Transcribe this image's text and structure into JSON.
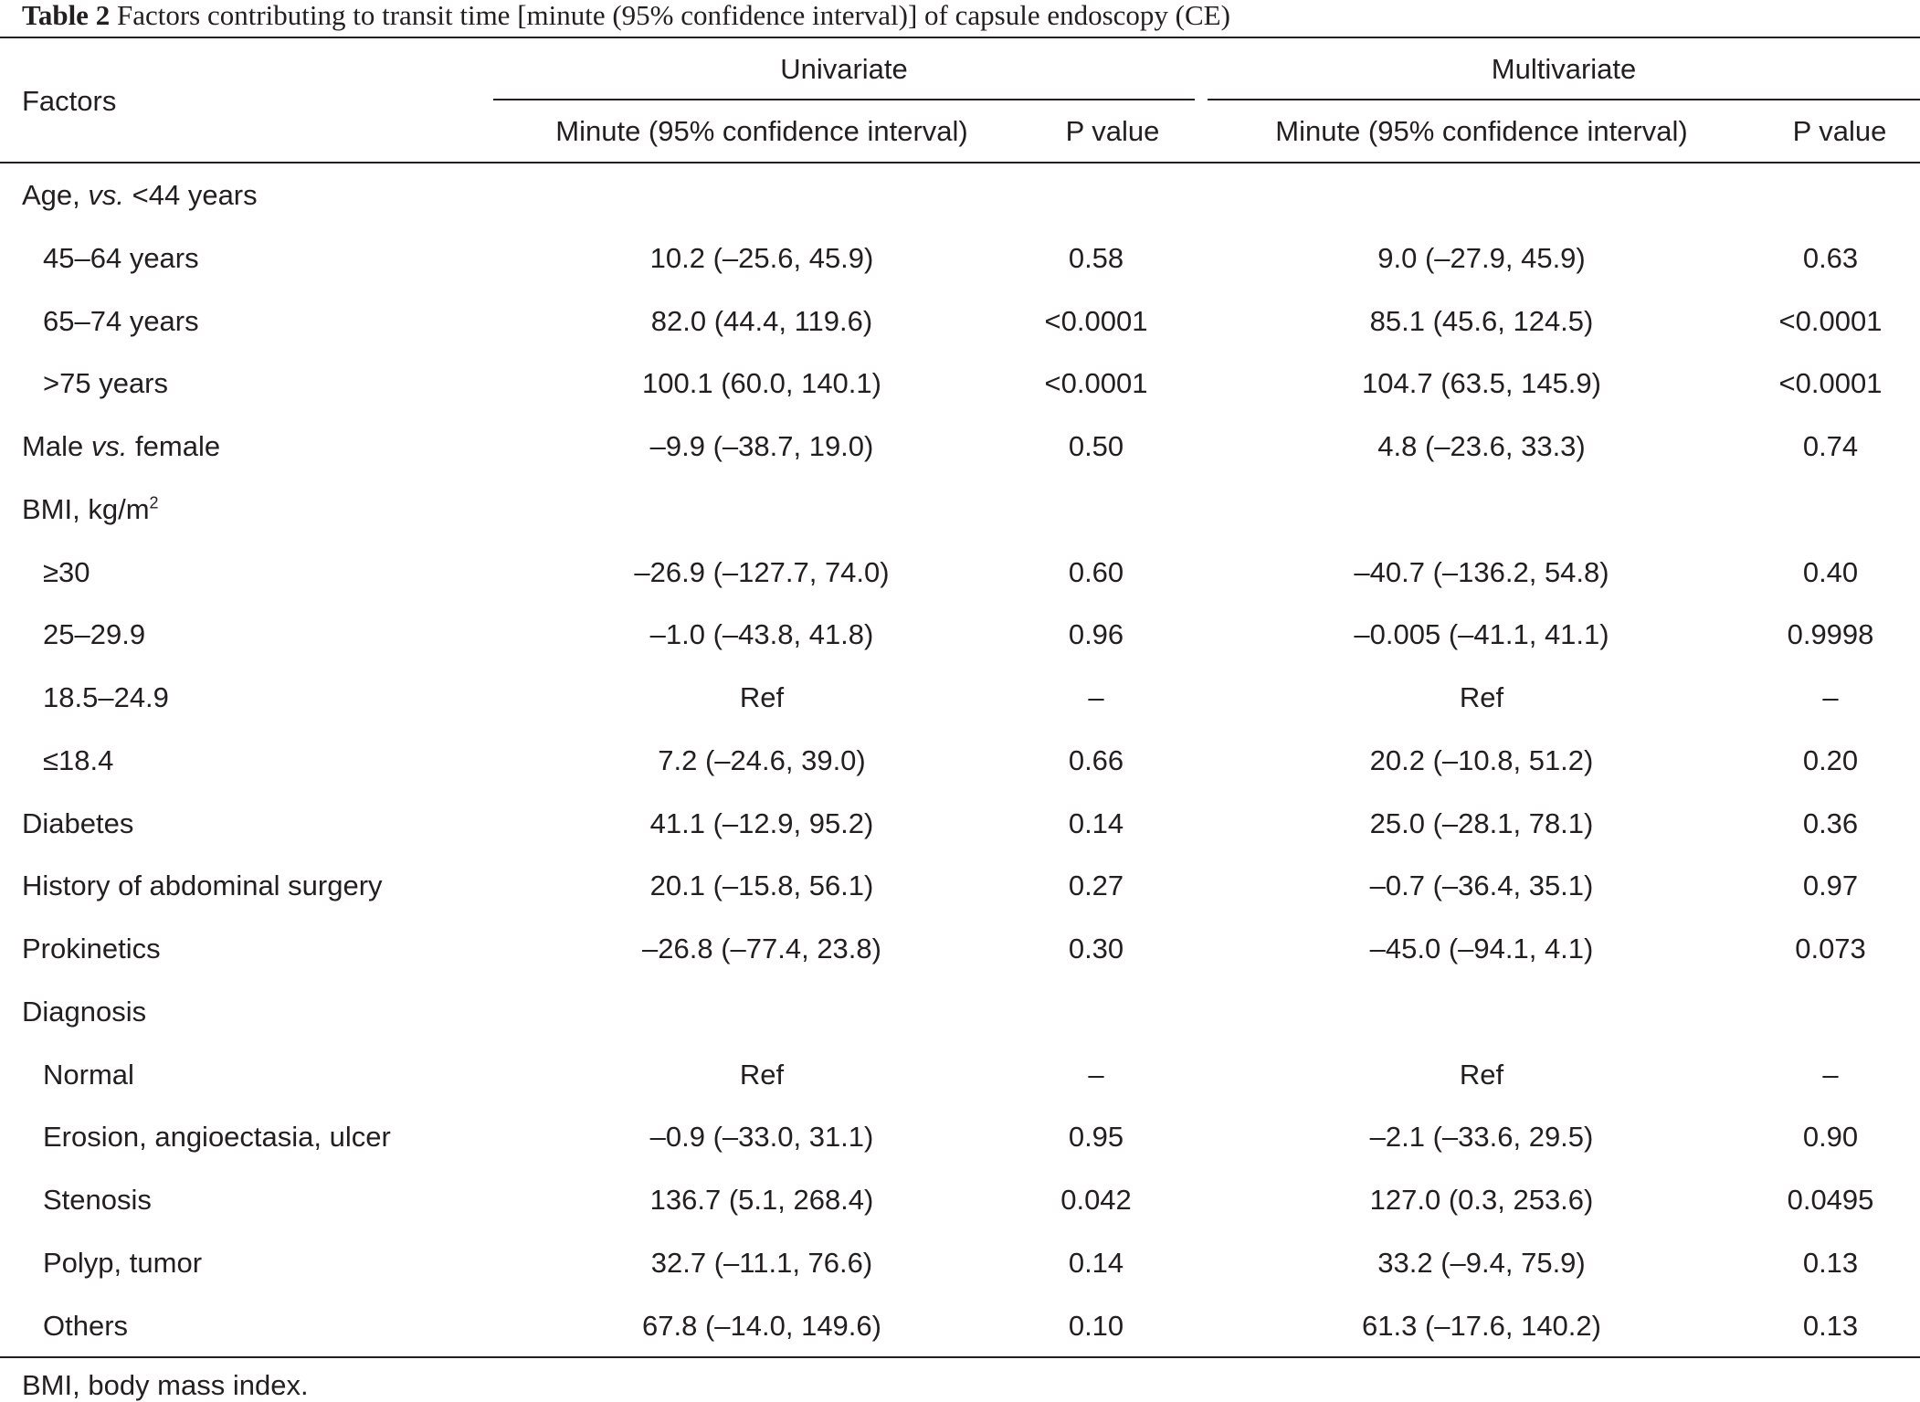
{
  "caption": {
    "label": "Table 2",
    "text": "Factors contributing to transit time [minute (95% confidence interval)] of capsule endoscopy (CE)"
  },
  "headers": {
    "factors": "Factors",
    "univariate": "Univariate",
    "multivariate": "Multivariate",
    "uni_minute": "Minute (95% confidence interval)",
    "uni_p": "P value",
    "multi_minute": "Minute (95% confidence interval)",
    "multi_p": "P value"
  },
  "rows": [
    {
      "factor_pre": "Age, ",
      "factor_italic": "vs.",
      "factor_post": " <44 years",
      "indent": false,
      "uni": "",
      "uni_p": "",
      "multi": "",
      "multi_p": ""
    },
    {
      "factor": "45–64 years",
      "indent": true,
      "uni": "10.2 (–25.6, 45.9)",
      "uni_p": "0.58",
      "multi": "9.0 (–27.9, 45.9)",
      "multi_p": "0.63"
    },
    {
      "factor": "65–74 years",
      "indent": true,
      "uni": "82.0 (44.4, 119.6)",
      "uni_p": "<0.0001",
      "multi": "85.1 (45.6, 124.5)",
      "multi_p": "<0.0001"
    },
    {
      "factor": ">75 years",
      "indent": true,
      "uni": "100.1 (60.0, 140.1)",
      "uni_p": "<0.0001",
      "multi": "104.7 (63.5, 145.9)",
      "multi_p": "<0.0001"
    },
    {
      "factor_pre": "Male ",
      "factor_italic": "vs.",
      "factor_post": " female",
      "indent": false,
      "uni": "–9.9 (–38.7, 19.0)",
      "uni_p": "0.50",
      "multi": "4.8 (–23.6, 33.3)",
      "multi_p": "0.74"
    },
    {
      "factor_pre": "BMI, kg/m",
      "factor_sup": "2",
      "indent": false,
      "uni": "",
      "uni_p": "",
      "multi": "",
      "multi_p": ""
    },
    {
      "factor": "≥30",
      "indent": true,
      "uni": "–26.9 (–127.7, 74.0)",
      "uni_p": "0.60",
      "multi": "–40.7 (–136.2, 54.8)",
      "multi_p": "0.40"
    },
    {
      "factor": "25–29.9",
      "indent": true,
      "uni": "–1.0 (–43.8, 41.8)",
      "uni_p": "0.96",
      "multi": "–0.005 (–41.1, 41.1)",
      "multi_p": "0.9998"
    },
    {
      "factor": "18.5–24.9",
      "indent": true,
      "uni": "Ref",
      "uni_p": "–",
      "multi": "Ref",
      "multi_p": "–"
    },
    {
      "factor": "≤18.4",
      "indent": true,
      "uni": "7.2 (–24.6, 39.0)",
      "uni_p": "0.66",
      "multi": "20.2 (–10.8, 51.2)",
      "multi_p": "0.20"
    },
    {
      "factor": "Diabetes",
      "indent": false,
      "uni": "41.1 (–12.9, 95.2)",
      "uni_p": "0.14",
      "multi": "25.0 (–28.1, 78.1)",
      "multi_p": "0.36"
    },
    {
      "factor": "History of abdominal surgery",
      "indent": false,
      "uni": "20.1 (–15.8, 56.1)",
      "uni_p": "0.27",
      "multi": "–0.7 (–36.4, 35.1)",
      "multi_p": "0.97"
    },
    {
      "factor": "Prokinetics",
      "indent": false,
      "uni": "–26.8 (–77.4, 23.8)",
      "uni_p": "0.30",
      "multi": "–45.0 (–94.1, 4.1)",
      "multi_p": "0.073"
    },
    {
      "factor": "Diagnosis",
      "indent": false,
      "uni": "",
      "uni_p": "",
      "multi": "",
      "multi_p": ""
    },
    {
      "factor": "Normal",
      "indent": true,
      "uni": "Ref",
      "uni_p": "–",
      "multi": "Ref",
      "multi_p": "–"
    },
    {
      "factor": "Erosion, angioectasia, ulcer",
      "indent": true,
      "uni": "–0.9 (–33.0, 31.1)",
      "uni_p": "0.95",
      "multi": "–2.1 (–33.6, 29.5)",
      "multi_p": "0.90"
    },
    {
      "factor": "Stenosis",
      "indent": true,
      "uni": "136.7 (5.1, 268.4)",
      "uni_p": "0.042",
      "multi": "127.0 (0.3, 253.6)",
      "multi_p": "0.0495"
    },
    {
      "factor": "Polyp, tumor",
      "indent": true,
      "uni": "32.7 (–11.1, 76.6)",
      "uni_p": "0.14",
      "multi": "33.2 (–9.4, 75.9)",
      "multi_p": "0.13"
    },
    {
      "factor": "Others",
      "indent": true,
      "uni": "67.8 (–14.0, 149.6)",
      "uni_p": "0.10",
      "multi": "61.3 (–17.6, 140.2)",
      "multi_p": "0.13"
    }
  ],
  "footnote": "BMI, body mass index."
}
